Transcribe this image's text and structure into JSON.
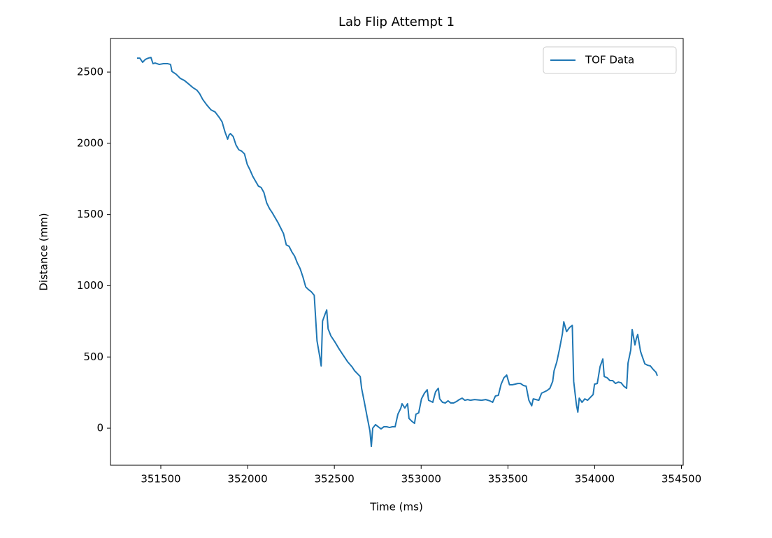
{
  "chart_data": {
    "type": "line",
    "title": "Lab Flip Attempt 1",
    "x_label": "Time (ms)",
    "y_label": "Distance (mm)",
    "x": [
      351363,
      351379,
      351395,
      351411,
      351427,
      351443,
      351455,
      351467,
      351491,
      351515,
      351540,
      351556,
      351564,
      351588,
      351612,
      351636,
      351660,
      351684,
      351708,
      351724,
      351741,
      351765,
      351789,
      351813,
      351837,
      351853,
      351869,
      351885,
      351893,
      351901,
      351917,
      351933,
      351949,
      351966,
      351982,
      351998,
      352014,
      352030,
      352046,
      352062,
      352078,
      352094,
      352110,
      352126,
      352142,
      352158,
      352175,
      352191,
      352207,
      352223,
      352239,
      352255,
      352271,
      352287,
      352303,
      352319,
      352335,
      352351,
      352367,
      352384,
      352400,
      352416,
      352424,
      352432,
      352448,
      352456,
      352464,
      352480,
      352504,
      352528,
      352552,
      352576,
      352601,
      352617,
      352633,
      352649,
      352657,
      352673,
      352689,
      352705,
      352713,
      352721,
      352737,
      352753,
      352769,
      352785,
      352802,
      352818,
      352834,
      352850,
      352866,
      352882,
      352890,
      352906,
      352922,
      352930,
      352946,
      352962,
      352970,
      352986,
      353002,
      353019,
      353035,
      353043,
      353067,
      353083,
      353099,
      353107,
      353123,
      353139,
      353155,
      353171,
      353187,
      353203,
      353220,
      353236,
      353252,
      353268,
      353284,
      353308,
      353348,
      353372,
      353396,
      353412,
      353428,
      353445,
      353461,
      353477,
      353493,
      353509,
      353525,
      353541,
      353557,
      353573,
      353589,
      353605,
      353621,
      353637,
      353646,
      353662,
      353678,
      353694,
      353710,
      353726,
      353742,
      353758,
      353766,
      353782,
      353798,
      353814,
      353822,
      353838,
      353855,
      353871,
      353879,
      353895,
      353903,
      353911,
      353927,
      353943,
      353959,
      353975,
      353991,
      353999,
      354015,
      354031,
      354047,
      354055,
      354072,
      354088,
      354104,
      354120,
      354136,
      354152,
      354168,
      354184,
      354192,
      354208,
      354216,
      354232,
      354240,
      354248,
      354264,
      354272,
      354289,
      354305,
      354321,
      354337,
      354353,
      354361
    ],
    "series": [
      {
        "name": "TOF Data",
        "color": "#1f77b4",
        "values": [
          2598,
          2598,
          2569,
          2589,
          2598,
          2603,
          2559,
          2564,
          2554,
          2559,
          2559,
          2554,
          2505,
          2485,
          2456,
          2441,
          2417,
          2392,
          2373,
          2348,
          2309,
          2269,
          2235,
          2220,
          2181,
          2151,
          2083,
          2029,
          2058,
          2068,
          2048,
          1989,
          1955,
          1945,
          1926,
          1852,
          1813,
          1768,
          1734,
          1700,
          1690,
          1655,
          1582,
          1542,
          1513,
          1479,
          1444,
          1405,
          1366,
          1287,
          1277,
          1238,
          1208,
          1159,
          1120,
          1061,
          992,
          973,
          958,
          933,
          614,
          501,
          437,
          752,
          806,
          830,
          698,
          648,
          604,
          555,
          511,
          467,
          432,
          403,
          383,
          363,
          280,
          182,
          79,
          -20,
          -128,
          0,
          25,
          10,
          -5,
          10,
          10,
          5,
          10,
          10,
          98,
          138,
          172,
          142,
          172,
          69,
          49,
          34,
          98,
          108,
          206,
          246,
          270,
          196,
          182,
          255,
          280,
          206,
          182,
          177,
          192,
          177,
          177,
          187,
          201,
          211,
          196,
          201,
          196,
          201,
          196,
          201,
          192,
          182,
          226,
          231,
          309,
          354,
          373,
          305,
          305,
          309,
          314,
          314,
          300,
          295,
          196,
          157,
          206,
          201,
          196,
          246,
          255,
          265,
          280,
          329,
          403,
          467,
          560,
          663,
          747,
          678,
          707,
          722,
          329,
          162,
          113,
          211,
          182,
          206,
          196,
          216,
          236,
          309,
          314,
          432,
          486,
          363,
          354,
          334,
          334,
          314,
          324,
          319,
          295,
          280,
          457,
          550,
          693,
          585,
          629,
          658,
          540,
          511,
          452,
          442,
          437,
          413,
          393,
          368
        ]
      }
    ],
    "xlim": [
      351210,
      354510
    ],
    "xticks": [
      351500,
      352000,
      352500,
      353000,
      353500,
      354000,
      354500
    ],
    "ylim": [
      -260,
      2736
    ],
    "yticks": [
      0,
      500,
      1000,
      1500,
      2000,
      2500
    ],
    "grid": false,
    "legend": "upper right"
  }
}
